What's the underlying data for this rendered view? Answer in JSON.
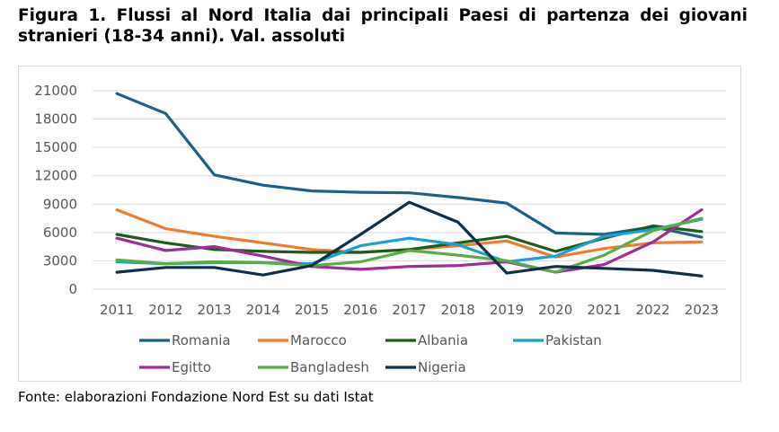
{
  "title": "Figura 1. Flussi al Nord Italia dai principali Paesi di partenza dei giovani stranieri (18-34 anni). Val. assoluti",
  "source": "Fonte: elaborazioni Fondazione Nord Est su dati Istat",
  "chart_data": {
    "type": "line",
    "title": "Figura 1. Flussi al Nord Italia dai principali Paesi di partenza dei giovani stranieri (18-34 anni). Val. assoluti",
    "xlabel": "",
    "ylabel": "",
    "ylim": [
      0,
      21000
    ],
    "yticks": [
      "0",
      "3000",
      "6000",
      "9000",
      "12000",
      "15000",
      "18000",
      "21000"
    ],
    "categories": [
      "2011",
      "2012",
      "2013",
      "2014",
      "2015",
      "2016",
      "2017",
      "2018",
      "2019",
      "2020",
      "2021",
      "2022",
      "2023"
    ],
    "grid": "horizontal",
    "legend_position": "bottom",
    "series": [
      {
        "name": "Romania",
        "color": "#1f6185",
        "values": [
          20700,
          18600,
          12100,
          11000,
          10400,
          10250,
          10200,
          9700,
          9100,
          5950,
          5800,
          6600,
          5500
        ]
      },
      {
        "name": "Marocco",
        "color": "#ed7d31",
        "values": [
          8400,
          6400,
          5600,
          4900,
          4200,
          3900,
          4200,
          4600,
          5100,
          3400,
          4300,
          4900,
          5000
        ]
      },
      {
        "name": "Albania",
        "color": "#1e5c1e",
        "values": [
          5800,
          4900,
          4200,
          4000,
          3900,
          3900,
          4200,
          4900,
          5600,
          4000,
          5400,
          6700,
          6100
        ]
      },
      {
        "name": "Pakistan",
        "color": "#1fa0d4",
        "values": [
          2900,
          2700,
          2800,
          2800,
          2700,
          4600,
          5400,
          4700,
          2900,
          3500,
          5600,
          6300,
          7400
        ]
      },
      {
        "name": "Egitto",
        "color": "#9b3095",
        "values": [
          5400,
          4100,
          4500,
          3500,
          2400,
          2100,
          2400,
          2500,
          2900,
          1800,
          2600,
          5000,
          8400
        ]
      },
      {
        "name": "Bangladesh",
        "color": "#5aac44",
        "values": [
          3100,
          2700,
          2900,
          2800,
          2500,
          2900,
          4100,
          3600,
          3000,
          1800,
          3600,
          6200,
          7500
        ]
      },
      {
        "name": "Nigeria",
        "color": "#0f3048",
        "values": [
          1800,
          2300,
          2300,
          1500,
          2500,
          5800,
          9200,
          7100,
          1700,
          2400,
          2200,
          2000,
          1400
        ]
      }
    ]
  }
}
